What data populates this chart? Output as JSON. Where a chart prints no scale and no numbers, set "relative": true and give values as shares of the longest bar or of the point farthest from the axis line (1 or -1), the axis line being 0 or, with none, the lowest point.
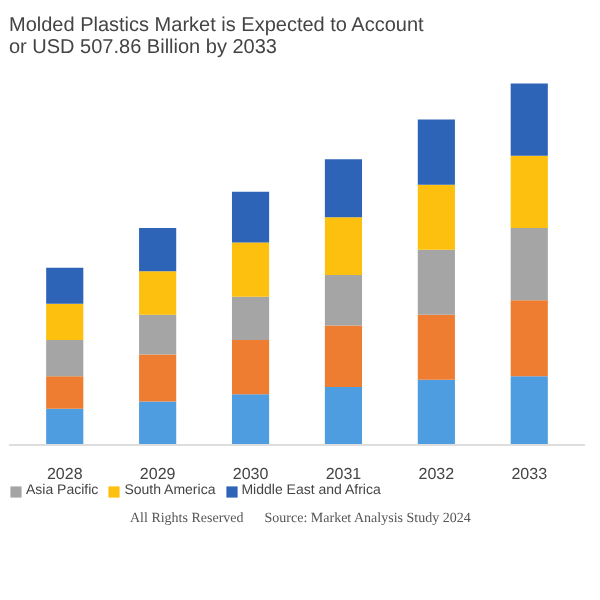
{
  "chart_data": {
    "type": "bar",
    "title": "Molded Plastics Market is Expected to Account\nor USD 507.86 Billion by 2033",
    "stacked": true,
    "relative": true,
    "categories": [
      "2028",
      "2029",
      "2030",
      "2031",
      "2032",
      "2033"
    ],
    "series": [
      {
        "color": "#4e9de0",
        "values": [
          0.1,
          0.12,
          0.14,
          0.16,
          0.18,
          0.19
        ]
      },
      {
        "color": "#ee7d31",
        "values": [
          0.09,
          0.13,
          0.15,
          0.17,
          0.18,
          0.21
        ]
      },
      {
        "name": "Asia Pacific",
        "color": "#a5a5a5",
        "values": [
          0.1,
          0.11,
          0.12,
          0.14,
          0.18,
          0.2
        ]
      },
      {
        "name": "South America",
        "color": "#fdc00f",
        "values": [
          0.1,
          0.12,
          0.15,
          0.16,
          0.18,
          0.2
        ]
      },
      {
        "name": "Middle East and Africa",
        "color": "#2e64b8",
        "values": [
          0.1,
          0.12,
          0.14,
          0.16,
          0.18,
          0.2
        ]
      }
    ],
    "legend": "bottom",
    "grid": false,
    "annotations": [
      "All Rights Reserved",
      "Source: Market Analysis Study 2024"
    ]
  }
}
